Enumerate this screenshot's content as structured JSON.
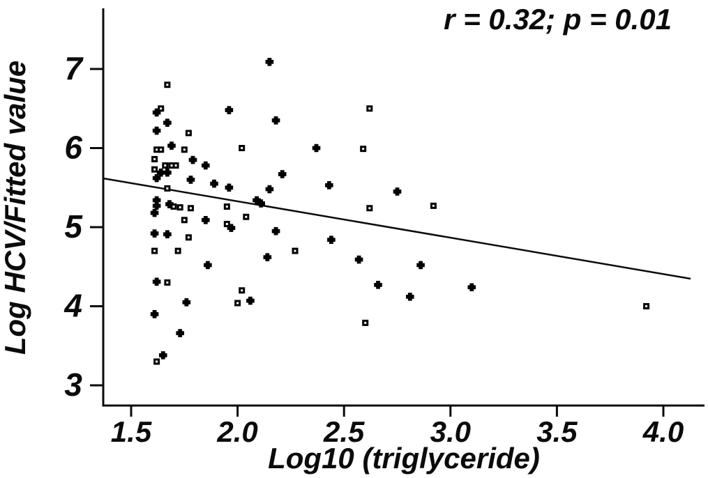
{
  "figure": {
    "background_color": "#ffffff",
    "foreground_color": "#0b0b0b"
  },
  "chart_data": {
    "type": "scatter",
    "title": "",
    "annotation": "r = 0.32; p = 0.01",
    "xlabel": "Log10 (triglyceride)",
    "ylabel": "Log HCV/Fitted value",
    "xlim": [
      1.35,
      4.2
    ],
    "ylim": [
      2.74,
      7.77
    ],
    "grid": false,
    "legend": "none",
    "x_ticks": [
      1.5,
      2.0,
      2.5,
      3.0,
      3.5,
      4.0
    ],
    "x_tick_labels": [
      "1.5",
      "2.0",
      "2.5",
      "3.0",
      "3.5",
      "4.0"
    ],
    "y_ticks": [
      3,
      4,
      5,
      6,
      7
    ],
    "y_tick_labels": [
      "3",
      "4",
      "5",
      "6",
      "7"
    ],
    "series": [
      {
        "name": "filled-circle-points",
        "marker": "filled-plus",
        "color": "#000000",
        "points": [
          [
            1.62,
            6.45
          ],
          [
            1.67,
            6.32
          ],
          [
            1.62,
            6.22
          ],
          [
            2.15,
            7.09
          ],
          [
            1.96,
            6.48
          ],
          [
            2.18,
            6.35
          ],
          [
            1.69,
            6.03
          ],
          [
            2.37,
            6.0
          ],
          [
            1.85,
            5.78
          ],
          [
            1.79,
            5.85
          ],
          [
            2.21,
            5.67
          ],
          [
            1.78,
            5.6
          ],
          [
            1.64,
            5.69
          ],
          [
            1.67,
            5.69
          ],
          [
            1.62,
            5.62
          ],
          [
            1.89,
            5.55
          ],
          [
            1.96,
            5.5
          ],
          [
            2.15,
            5.48
          ],
          [
            2.43,
            5.53
          ],
          [
            2.09,
            5.34
          ],
          [
            2.11,
            5.3
          ],
          [
            1.62,
            5.34
          ],
          [
            1.62,
            5.27
          ],
          [
            1.68,
            5.29
          ],
          [
            1.61,
            5.18
          ],
          [
            1.85,
            5.09
          ],
          [
            1.97,
            4.99
          ],
          [
            2.18,
            4.95
          ],
          [
            2.44,
            4.84
          ],
          [
            2.75,
            5.45
          ],
          [
            1.61,
            4.92
          ],
          [
            1.67,
            4.91
          ],
          [
            2.14,
            4.62
          ],
          [
            2.57,
            4.59
          ],
          [
            2.86,
            4.52
          ],
          [
            1.86,
            4.52
          ],
          [
            2.66,
            4.27
          ],
          [
            2.81,
            4.12
          ],
          [
            3.1,
            4.24
          ],
          [
            1.62,
            4.31
          ],
          [
            1.61,
            3.9
          ],
          [
            1.76,
            4.05
          ],
          [
            2.06,
            4.07
          ],
          [
            1.73,
            3.66
          ],
          [
            1.65,
            3.38
          ]
        ]
      },
      {
        "name": "open-square-points",
        "marker": "open-square",
        "color": "#000000",
        "points": [
          [
            1.67,
            6.8
          ],
          [
            1.64,
            6.5
          ],
          [
            1.77,
            6.19
          ],
          [
            2.62,
            6.5
          ],
          [
            2.59,
            5.99
          ],
          [
            2.02,
            6.0
          ],
          [
            1.75,
            5.98
          ],
          [
            1.62,
            5.98
          ],
          [
            1.64,
            5.98
          ],
          [
            1.61,
            5.86
          ],
          [
            1.61,
            5.73
          ],
          [
            1.66,
            5.78
          ],
          [
            1.69,
            5.78
          ],
          [
            1.71,
            5.78
          ],
          [
            1.67,
            5.49
          ],
          [
            1.7,
            5.26
          ],
          [
            1.73,
            5.25
          ],
          [
            1.78,
            5.24
          ],
          [
            1.95,
            5.26
          ],
          [
            2.04,
            5.13
          ],
          [
            1.75,
            5.09
          ],
          [
            1.95,
            5.04
          ],
          [
            1.77,
            4.87
          ],
          [
            1.61,
            4.7
          ],
          [
            1.72,
            4.7
          ],
          [
            2.27,
            4.7
          ],
          [
            2.62,
            5.24
          ],
          [
            2.92,
            5.27
          ],
          [
            2.02,
            4.2
          ],
          [
            2.0,
            4.04
          ],
          [
            1.67,
            4.3
          ],
          [
            2.6,
            3.79
          ],
          [
            3.92,
            4.0
          ],
          [
            1.62,
            3.3
          ]
        ]
      }
    ],
    "trend_line": {
      "x": [
        1.369,
        4.128
      ],
      "y": [
        5.617,
        4.348
      ]
    }
  }
}
